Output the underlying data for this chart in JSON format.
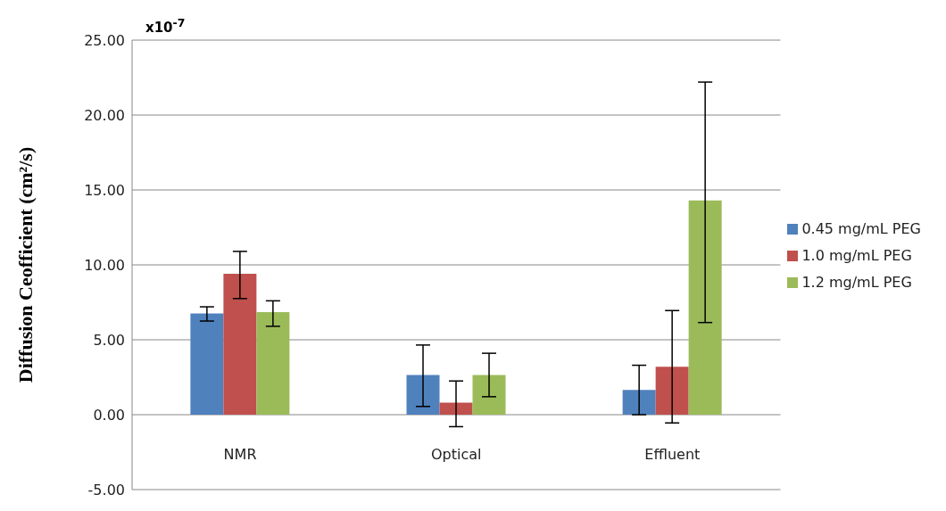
{
  "chart_data": {
    "type": "bar",
    "ylabel": "Diffusion Ceofficient (cm²/s)",
    "annotations": [
      "x10$^{-7}$"
    ],
    "categories": [
      "NMR",
      "Optical",
      "Effluent"
    ],
    "series": [
      {
        "name": "0.45 mg/mL  PEG",
        "color": "#4f81bd",
        "values": [
          6.75,
          2.65,
          1.65
        ],
        "errors": [
          [
            6.25,
            7.2
          ],
          [
            0.55,
            4.65
          ],
          [
            0,
            3.3
          ]
        ]
      },
      {
        "name": "1.0 mg/mL  PEG",
        "color": "#c0504d",
        "values": [
          9.4,
          0.8,
          3.2
        ],
        "errors": [
          [
            7.75,
            10.9
          ],
          [
            -0.8,
            2.25
          ],
          [
            -0.55,
            6.95
          ]
        ]
      },
      {
        "name": "1.2 mg/mL  PEG",
        "color": "#9bbb59",
        "values": [
          6.85,
          2.65,
          14.3
        ],
        "errors": [
          [
            5.9,
            7.6
          ],
          [
            1.2,
            4.1
          ],
          [
            6.15,
            22.2
          ]
        ]
      }
    ],
    "ylim": [
      -5,
      25
    ],
    "yticks": [
      {
        "value": -5,
        "label": "-5.00"
      },
      {
        "value": 0,
        "label": "0.00"
      },
      {
        "value": 5,
        "label": "5.00"
      },
      {
        "value": 10,
        "label": "10.00"
      },
      {
        "value": 15,
        "label": "15.00"
      },
      {
        "value": 20,
        "label": "20.00"
      },
      {
        "value": 25,
        "label": "25.00"
      }
    ],
    "grid": "y",
    "legend": "right"
  }
}
